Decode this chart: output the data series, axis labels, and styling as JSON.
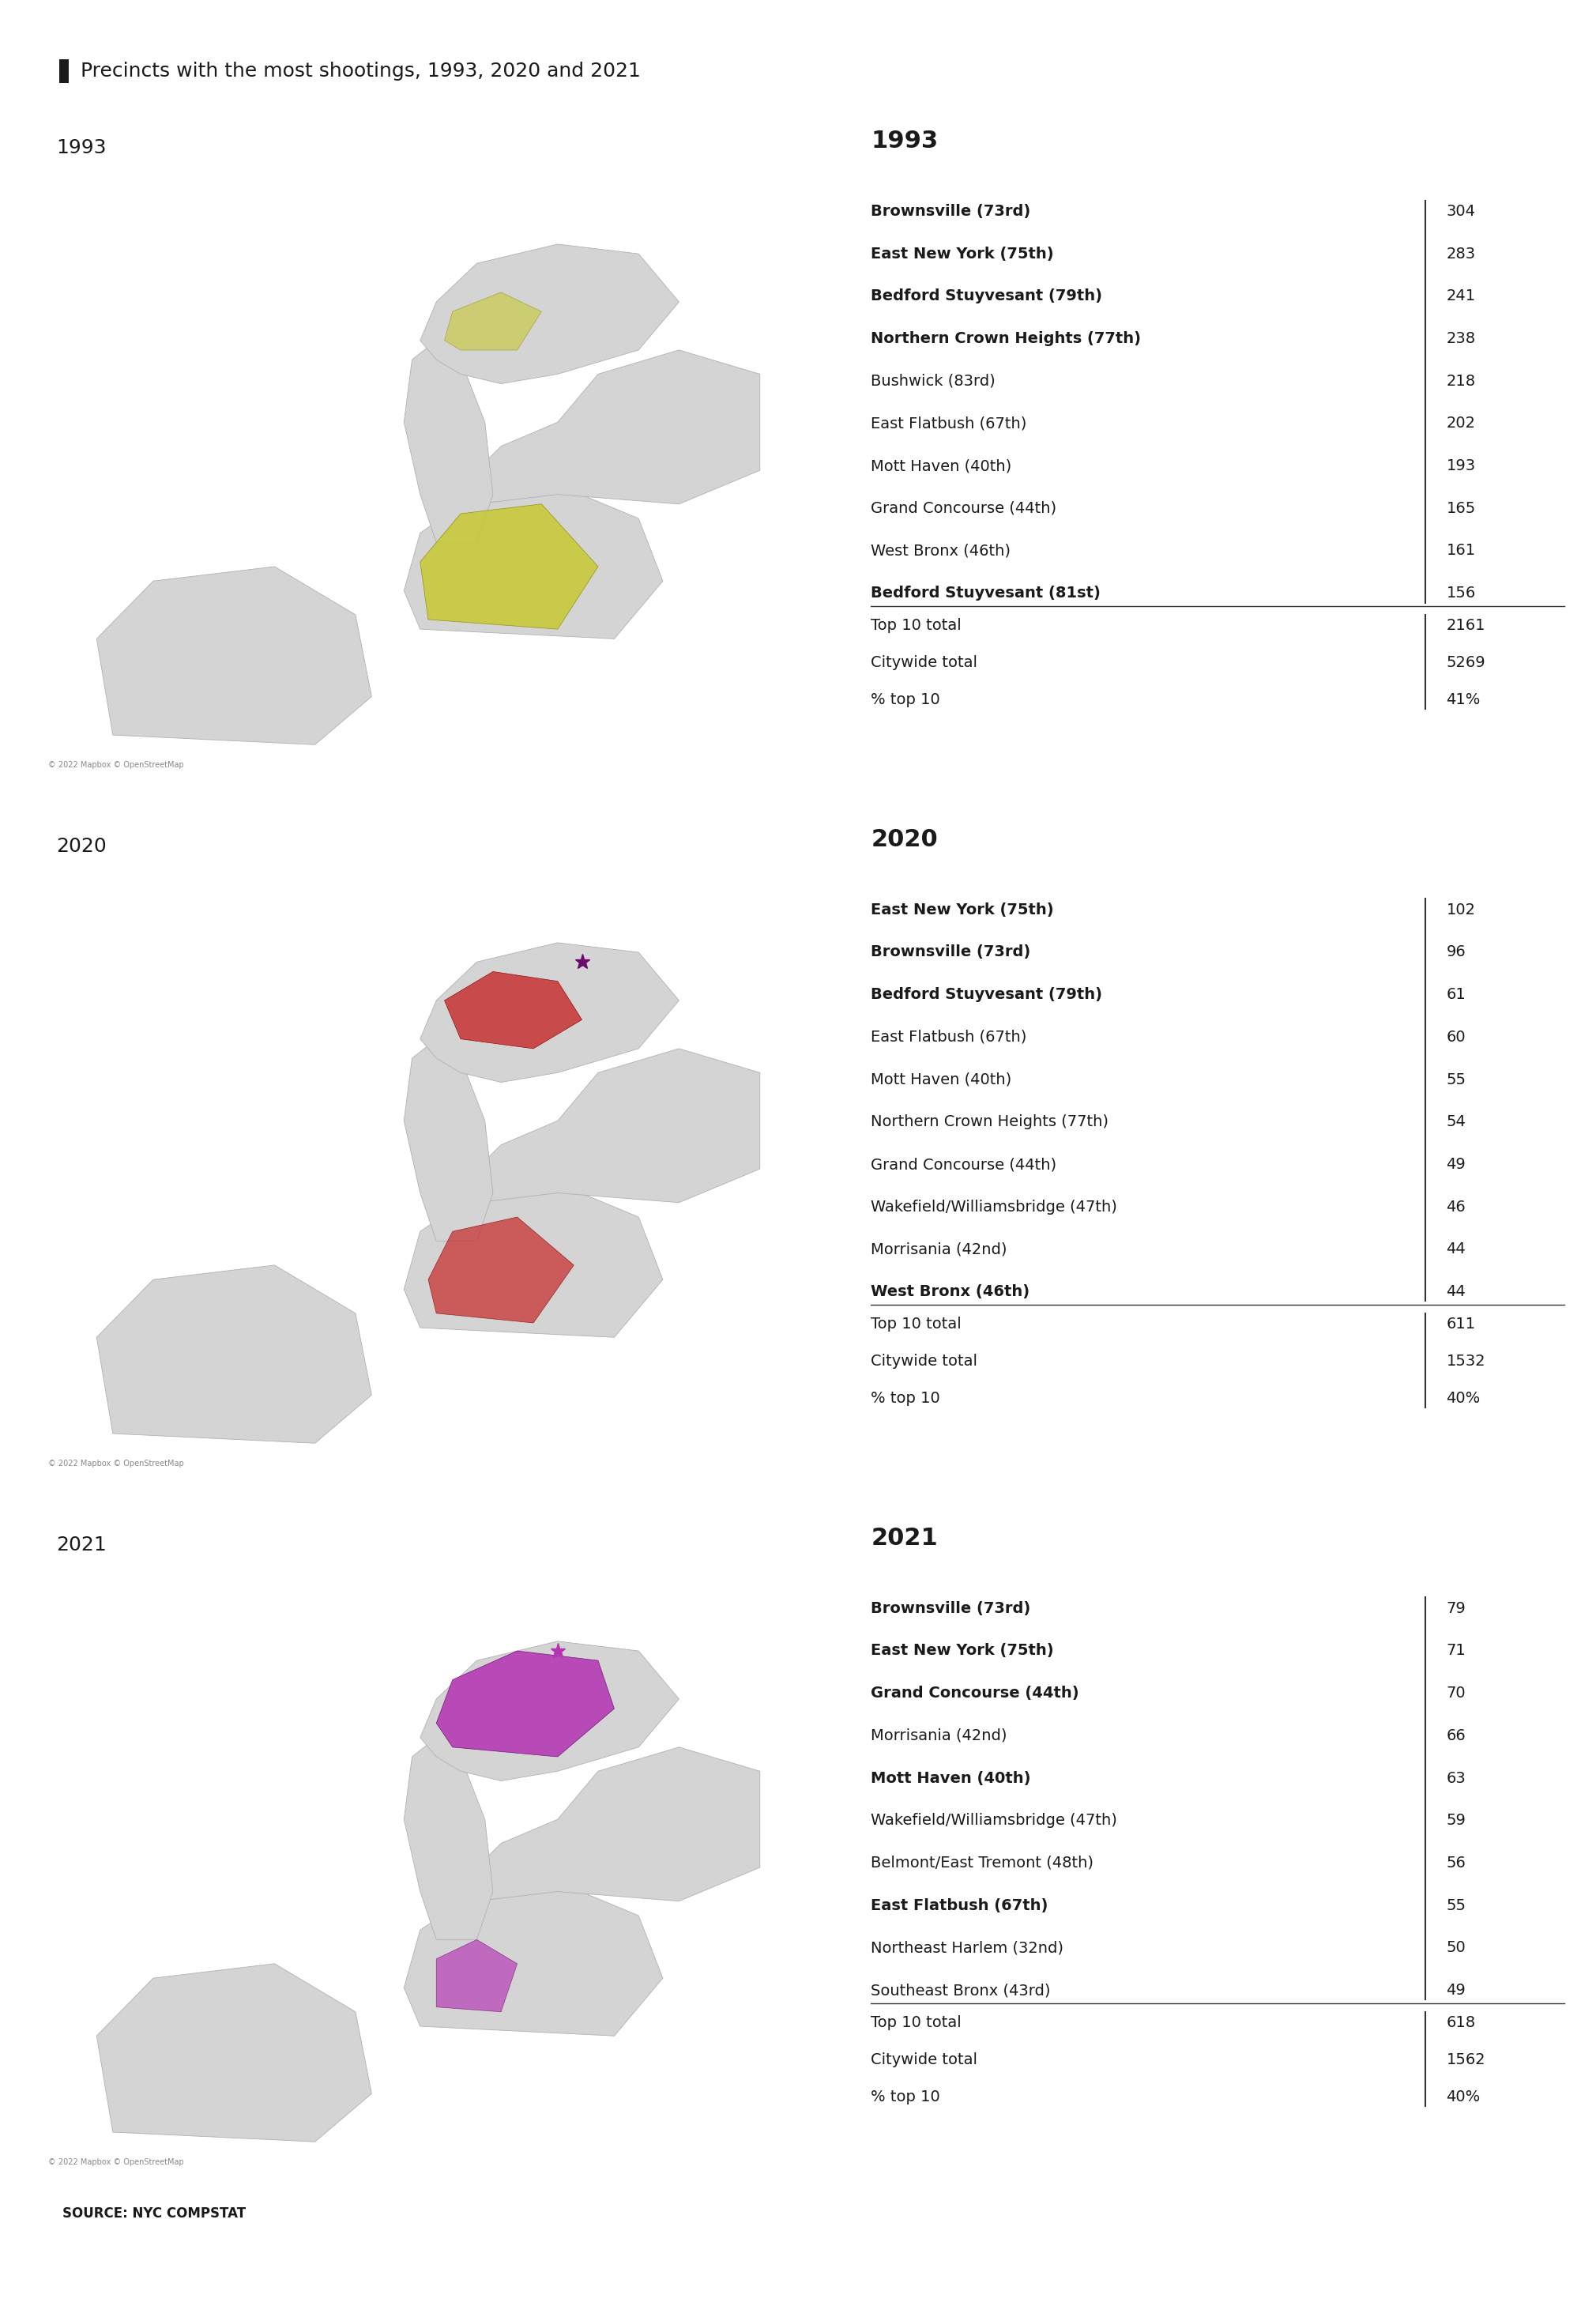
{
  "title": "Precincts with the most shootings, 1993, 2020 and 2021",
  "source": "SOURCE: NYC COMPSTAT",
  "years": [
    "1993",
    "2020",
    "2021"
  ],
  "tables": {
    "1993": {
      "rows": [
        {
          "name": "Brownsville (73rd)",
          "value": "304",
          "bold": true
        },
        {
          "name": "East New York (75th)",
          "value": "283",
          "bold": true
        },
        {
          "name": "Bedford Stuyvesant (79th)",
          "value": "241",
          "bold": true
        },
        {
          "name": "Northern Crown Heights (77th)",
          "value": "238",
          "bold": true
        },
        {
          "name": "Bushwick (83rd)",
          "value": "218",
          "bold": false
        },
        {
          "name": "East Flatbush (67th)",
          "value": "202",
          "bold": false
        },
        {
          "name": "Mott Haven (40th)",
          "value": "193",
          "bold": false
        },
        {
          "name": "Grand Concourse (44th)",
          "value": "165",
          "bold": false
        },
        {
          "name": "West Bronx (46th)",
          "value": "161",
          "bold": false
        },
        {
          "name": "Bedford Stuyvesant (81st)",
          "value": "156",
          "bold": true
        }
      ],
      "top10_total": "2161",
      "citywide_total": "5269",
      "pct_top10": "41%"
    },
    "2020": {
      "rows": [
        {
          "name": "East New York (75th)",
          "value": "102",
          "bold": true
        },
        {
          "name": "Brownsville (73rd)",
          "value": "96",
          "bold": true
        },
        {
          "name": "Bedford Stuyvesant (79th)",
          "value": "61",
          "bold": true
        },
        {
          "name": "East Flatbush (67th)",
          "value": "60",
          "bold": false
        },
        {
          "name": "Mott Haven (40th)",
          "value": "55",
          "bold": false
        },
        {
          "name": "Northern Crown Heights (77th)",
          "value": "54",
          "bold": false
        },
        {
          "name": "Grand Concourse (44th)",
          "value": "49",
          "bold": false
        },
        {
          "name": "Wakefield/Williamsbridge (47th)",
          "value": "46",
          "bold": false
        },
        {
          "name": "Morrisania (42nd)",
          "value": "44",
          "bold": false
        },
        {
          "name": "West Bronx (46th)",
          "value": "44",
          "bold": true
        }
      ],
      "top10_total": "611",
      "citywide_total": "1532",
      "pct_top10": "40%"
    },
    "2021": {
      "rows": [
        {
          "name": "Brownsville (73rd)",
          "value": "79",
          "bold": true
        },
        {
          "name": "East New York (75th)",
          "value": "71",
          "bold": true
        },
        {
          "name": "Grand Concourse (44th)",
          "value": "70",
          "bold": true
        },
        {
          "name": "Morrisania (42nd)",
          "value": "66",
          "bold": false
        },
        {
          "name": "Mott Haven (40th)",
          "value": "63",
          "bold": true
        },
        {
          "name": "Wakefield/Williamsbridge (47th)",
          "value": "59",
          "bold": false
        },
        {
          "name": "Belmont/East Tremont (48th)",
          "value": "56",
          "bold": false
        },
        {
          "name": "East Flatbush (67th)",
          "value": "55",
          "bold": true
        },
        {
          "name": "Northeast Harlem (32nd)",
          "value": "50",
          "bold": false
        },
        {
          "name": "Southeast Bronx (43rd)",
          "value": "49",
          "bold": false
        }
      ],
      "top10_total": "618",
      "citywide_total": "1562",
      "pct_top10": "40%"
    }
  },
  "map_colors": {
    "1993": "#c8c832",
    "2020": "#c83232",
    "2021": "#b432b4"
  },
  "bg_color": "#ffffff",
  "title_fontsize": 18,
  "table_year_fontsize": 22,
  "row_fontsize": 14,
  "summary_fontsize": 14,
  "source_fontsize": 12
}
